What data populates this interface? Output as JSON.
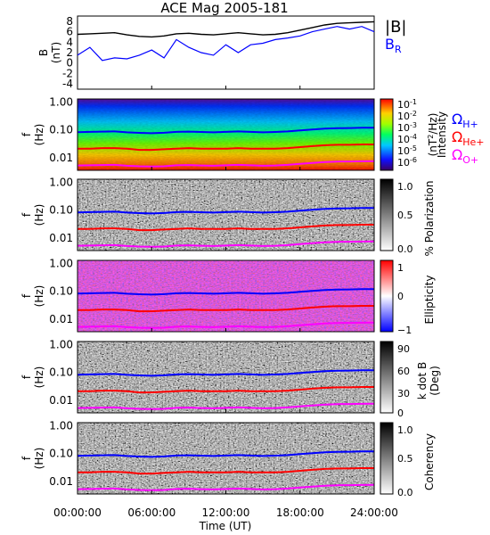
{
  "title": "ACE Mag 2005-181",
  "colors": {
    "btotal": "#000000",
    "br": "#0000ff",
    "h_plus": "#0000ff",
    "he_plus": "#ff0000",
    "o_plus": "#ff00ff"
  },
  "chart_data": {
    "type": "line",
    "title": "ACE Mag 2005-181",
    "xlabel": "Time (UT)",
    "x_ticks": [
      "00:00:00",
      "06:00:00",
      "12:00:00",
      "18:00:00",
      "24:00:00"
    ],
    "xlim": [
      0,
      24
    ],
    "panels": [
      {
        "type": "line",
        "ylabel": [
          "B",
          "(nT)"
        ],
        "ylim": [
          -5,
          9
        ],
        "y_ticks": [
          "8",
          "6",
          "4",
          "2",
          "0",
          "-2",
          "-4"
        ],
        "legend": [
          "|B|",
          "B",
          "R"
        ],
        "series": [
          {
            "name": "|B|",
            "x": [
              0,
              1,
              2,
              3,
              4,
              5,
              6,
              7,
              8,
              9,
              10,
              11,
              12,
              13,
              14,
              15,
              16,
              17,
              18,
              19,
              20,
              21,
              22,
              23,
              24
            ],
            "values": [
              5.5,
              5.6,
              5.7,
              5.8,
              5.4,
              5.1,
              5.0,
              5.2,
              5.6,
              5.7,
              5.5,
              5.4,
              5.6,
              5.8,
              5.6,
              5.4,
              5.5,
              5.8,
              6.3,
              6.8,
              7.3,
              7.6,
              7.7,
              7.8,
              7.9
            ]
          },
          {
            "name": "B_R",
            "x": [
              0,
              1,
              2,
              3,
              4,
              5,
              6,
              7,
              8,
              9,
              10,
              11,
              12,
              13,
              14,
              15,
              16,
              17,
              18,
              19,
              20,
              21,
              22,
              23,
              24
            ],
            "values": [
              1.5,
              3.0,
              0.5,
              1.0,
              0.8,
              1.5,
              2.5,
              1.0,
              4.5,
              3.0,
              2.0,
              1.5,
              3.5,
              2.0,
              3.5,
              3.8,
              4.5,
              4.8,
              5.2,
              6.0,
              6.5,
              7.0,
              6.5,
              7.0,
              6.0
            ]
          }
        ]
      },
      {
        "type": "heatmap",
        "ylabel": [
          "f",
          "(Hz)"
        ],
        "y_ticks": [
          "1.00",
          "0.10",
          "0.01"
        ],
        "colorbar": {
          "label_parts": [
            "Intensity",
            "(nT",
            "2",
            "/Hz)"
          ],
          "ticks": [
            "10",
            "10",
            "10",
            "10",
            "10",
            "10"
          ],
          "exponents": [
            "-1",
            "-2",
            "-3",
            "-4",
            "-5",
            "-6"
          ]
        },
        "legend": [
          {
            "symbol": "Ω",
            "sub": "H+"
          },
          {
            "symbol": "Ω",
            "sub": "He+"
          },
          {
            "symbol": "Ω",
            "sub": "O+"
          }
        ]
      },
      {
        "type": "heatmap",
        "ylabel": [
          "f",
          "(Hz)"
        ],
        "y_ticks": [
          "1.00",
          "0.10",
          "0.01"
        ],
        "colorbar": {
          "label": "% Polarization",
          "ticks": [
            "1.0",
            "0.5",
            "0.0"
          ]
        }
      },
      {
        "type": "heatmap",
        "ylabel": [
          "f",
          "(Hz)"
        ],
        "y_ticks": [
          "1.00",
          "0.10",
          "0.01"
        ],
        "colorbar": {
          "label": "Ellipticity",
          "ticks": [
            "1",
            "0",
            "−1"
          ]
        }
      },
      {
        "type": "heatmap",
        "ylabel": [
          "f",
          "(Hz)"
        ],
        "y_ticks": [
          "1.00",
          "0.10",
          "0.01"
        ],
        "colorbar": {
          "label": "k dot B",
          "label2": "(Deg)",
          "ticks": [
            "90",
            "60",
            "30",
            "0"
          ]
        }
      },
      {
        "type": "heatmap",
        "ylabel": [
          "f",
          "(Hz)"
        ],
        "y_ticks": [
          "1.00",
          "0.10",
          "0.01"
        ],
        "colorbar": {
          "label": "Coherency",
          "ticks": [
            "1.0",
            "0.5",
            "0.0"
          ]
        }
      }
    ],
    "gyrofrequency_lines": {
      "x": [
        0,
        1,
        2,
        3,
        4,
        5,
        6,
        7,
        8,
        9,
        10,
        11,
        12,
        13,
        14,
        15,
        16,
        17,
        18,
        19,
        20,
        21,
        22,
        23,
        24
      ],
      "H_plus": [
        0.083,
        0.085,
        0.087,
        0.088,
        0.082,
        0.078,
        0.076,
        0.079,
        0.085,
        0.087,
        0.084,
        0.082,
        0.085,
        0.088,
        0.085,
        0.082,
        0.084,
        0.088,
        0.096,
        0.103,
        0.111,
        0.115,
        0.117,
        0.119,
        0.12
      ],
      "He_plus": [
        0.021,
        0.021,
        0.022,
        0.022,
        0.021,
        0.019,
        0.019,
        0.02,
        0.021,
        0.022,
        0.021,
        0.021,
        0.021,
        0.022,
        0.021,
        0.021,
        0.021,
        0.022,
        0.024,
        0.026,
        0.028,
        0.029,
        0.029,
        0.03,
        0.03
      ],
      "O_plus": [
        0.0052,
        0.0053,
        0.0054,
        0.0055,
        0.0051,
        0.0049,
        0.0048,
        0.0049,
        0.0053,
        0.0054,
        0.0052,
        0.0051,
        0.0053,
        0.0055,
        0.0053,
        0.0051,
        0.0052,
        0.0055,
        0.006,
        0.0064,
        0.0069,
        0.0072,
        0.0073,
        0.0074,
        0.0075
      ]
    }
  }
}
